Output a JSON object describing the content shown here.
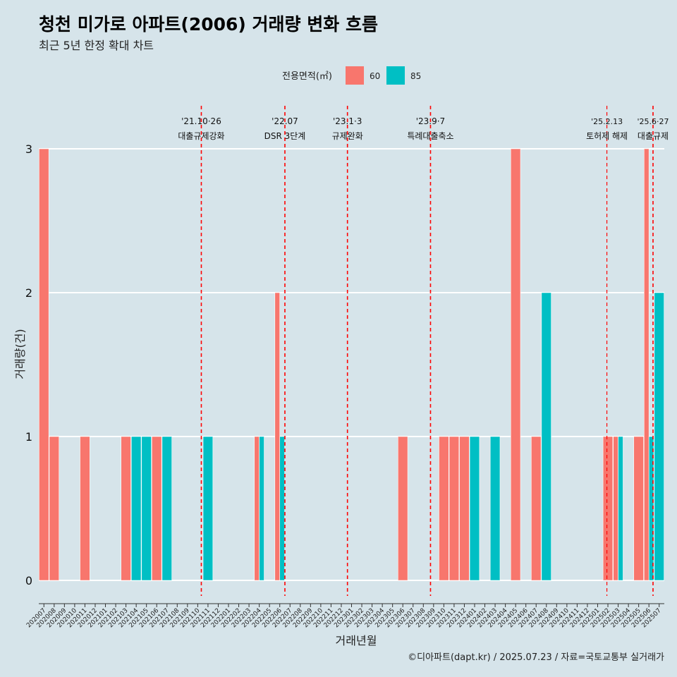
{
  "chart_data": {
    "type": "bar",
    "title": "청천 미가로 아파트(2006) 거래량 변화 흐름",
    "subtitle": "최근 5년 한정 확대 차트",
    "xlabel": "거래년월",
    "ylabel": "거래량(건)",
    "ylim": [
      0,
      3
    ],
    "yticks": [
      "0",
      "1",
      "2",
      "3"
    ],
    "grid": true,
    "legend": {
      "title": "전용면적(㎡)",
      "placement": "top"
    },
    "colors": {
      "60": "#f8766d",
      "85": "#00bfc4"
    },
    "categories": [
      "202007",
      "202008",
      "202009",
      "202010",
      "202011",
      "202012",
      "202101",
      "202102",
      "202103",
      "202104",
      "202105",
      "202106",
      "202107",
      "202108",
      "202109",
      "202110",
      "202111",
      "202112",
      "202201",
      "202202",
      "202203",
      "202204",
      "202205",
      "202206",
      "202207",
      "202208",
      "202209",
      "202210",
      "202211",
      "202212",
      "202301",
      "202302",
      "202303",
      "202304",
      "202305",
      "202306",
      "202307",
      "202308",
      "202309",
      "202310",
      "202311",
      "202312",
      "202401",
      "202402",
      "202403",
      "202404",
      "202405",
      "202406",
      "202407",
      "202408",
      "202409",
      "202410",
      "202411",
      "202412",
      "202501",
      "202502",
      "202503",
      "202504",
      "202505",
      "202506",
      "202507"
    ],
    "series": [
      {
        "name": "60",
        "values": [
          3,
          1,
          0,
          0,
          1,
          0,
          0,
          0,
          1,
          0,
          0,
          1,
          0,
          0,
          0,
          0,
          0,
          0,
          0,
          0,
          0,
          1,
          0,
          2,
          0,
          0,
          0,
          0,
          0,
          0,
          0,
          0,
          0,
          0,
          0,
          1,
          0,
          0,
          0,
          1,
          1,
          1,
          0,
          0,
          0,
          0,
          3,
          0,
          1,
          0,
          0,
          0,
          0,
          0,
          0,
          1,
          1,
          0,
          1,
          3,
          0
        ]
      },
      {
        "name": "85",
        "values": [
          0,
          0,
          0,
          0,
          0,
          0,
          0,
          0,
          0,
          1,
          1,
          0,
          1,
          0,
          0,
          0,
          1,
          0,
          0,
          0,
          0,
          1,
          0,
          1,
          0,
          0,
          0,
          0,
          0,
          0,
          0,
          0,
          0,
          0,
          0,
          0,
          0,
          0,
          0,
          0,
          0,
          0,
          1,
          0,
          1,
          0,
          0,
          0,
          0,
          2,
          0,
          0,
          0,
          0,
          0,
          0,
          1,
          0,
          0,
          1,
          2
        ]
      }
    ],
    "events": [
      {
        "date": "'21.10·26",
        "label": "대출규제강화",
        "month": "202110",
        "offset": 0.85
      },
      {
        "date": "'22.07",
        "label": "DSR 3단계",
        "month": "202207",
        "offset": 0.0
      },
      {
        "date": "'23.1·3",
        "label": "규제완화",
        "month": "202301",
        "offset": 0.1
      },
      {
        "date": "'23.9·7",
        "label": "특례대출축소",
        "month": "202309",
        "offset": 0.2
      },
      {
        "date": "'25.2.13",
        "label": "토허제 해제",
        "month": "202502",
        "offset": 0.4
      },
      {
        "date": "'25.6·27",
        "label": "대출규제",
        "month": "202506",
        "offset": 0.9
      }
    ]
  },
  "caption": "©디아파트(dapt.kr) / 2025.07.23 / 자료=국토교통부 실거래가"
}
